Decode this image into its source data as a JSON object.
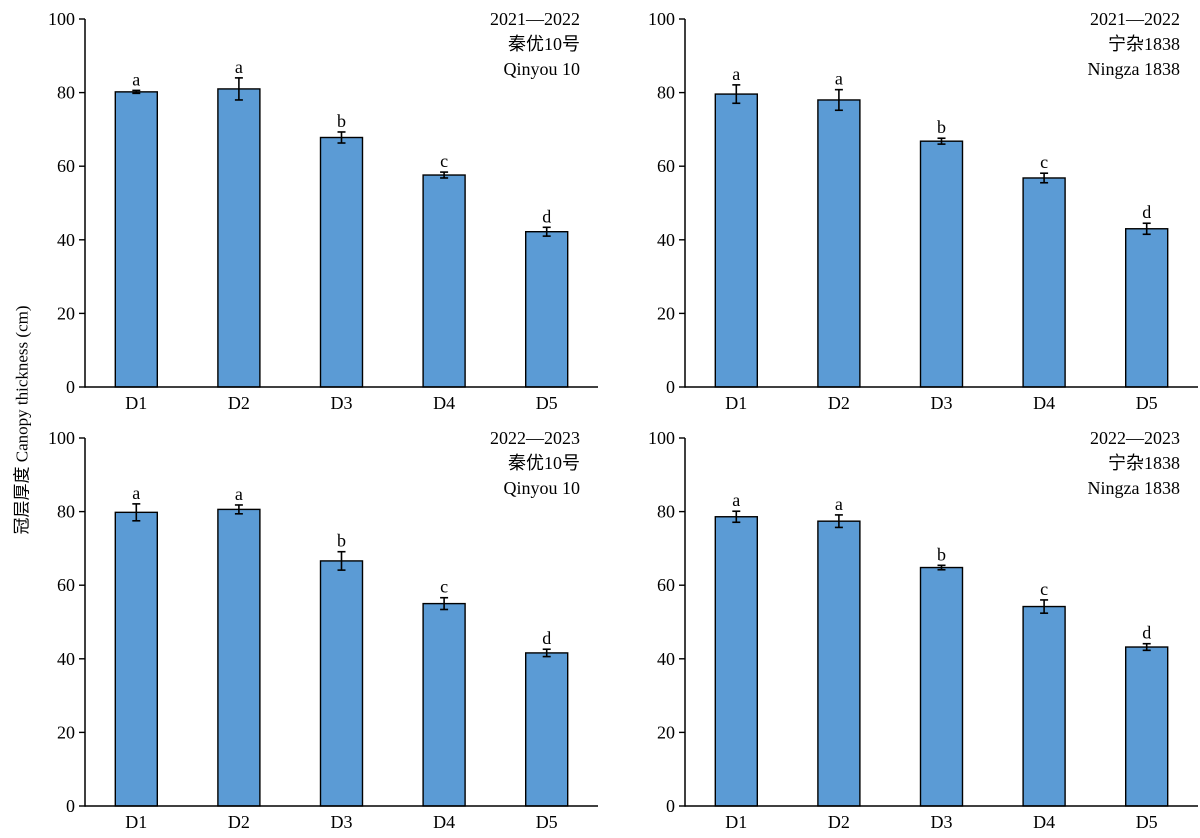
{
  "figure": {
    "ylabel": "冠层厚度 Canopy thickness (cm)",
    "bar_color": "#5b9bd5"
  },
  "chart_data": [
    {
      "type": "bar",
      "title_lines": [
        "2021—2022",
        "秦优10号",
        "Qinyou 10"
      ],
      "categories": [
        "D1",
        "D2",
        "D3",
        "D4",
        "D5"
      ],
      "values": [
        80.2,
        81.0,
        67.8,
        57.6,
        42.2
      ],
      "errors": [
        0.4,
        3.0,
        1.5,
        0.8,
        1.2
      ],
      "letters": [
        "a",
        "a",
        "b",
        "c",
        "d"
      ],
      "ylim": [
        0,
        100
      ],
      "yticks": [
        0,
        20,
        40,
        60,
        80,
        100
      ],
      "grid": false
    },
    {
      "type": "bar",
      "title_lines": [
        "2021—2022",
        "宁杂1838",
        "Ningza 1838"
      ],
      "categories": [
        "D1",
        "D2",
        "D3",
        "D4",
        "D5"
      ],
      "values": [
        79.6,
        78.0,
        66.8,
        56.8,
        43.0
      ],
      "errors": [
        2.5,
        2.8,
        0.8,
        1.3,
        1.5
      ],
      "letters": [
        "a",
        "a",
        "b",
        "c",
        "d"
      ],
      "ylim": [
        0,
        100
      ],
      "yticks": [
        0,
        20,
        40,
        60,
        80,
        100
      ],
      "grid": false
    },
    {
      "type": "bar",
      "title_lines": [
        "2022—2023",
        "秦优10号",
        "Qinyou 10"
      ],
      "categories": [
        "D1",
        "D2",
        "D3",
        "D4",
        "D5"
      ],
      "values": [
        79.8,
        80.6,
        66.6,
        55.0,
        41.6
      ],
      "errors": [
        2.3,
        1.2,
        2.5,
        1.6,
        1.0
      ],
      "letters": [
        "a",
        "a",
        "b",
        "c",
        "d"
      ],
      "ylim": [
        0,
        100
      ],
      "yticks": [
        0,
        20,
        40,
        60,
        80,
        100
      ],
      "grid": false
    },
    {
      "type": "bar",
      "title_lines": [
        "2022—2023",
        "宁杂1838",
        "Ningza 1838"
      ],
      "categories": [
        "D1",
        "D2",
        "D3",
        "D4",
        "D5"
      ],
      "values": [
        78.6,
        77.4,
        64.8,
        54.2,
        43.2
      ],
      "errors": [
        1.5,
        1.7,
        0.6,
        1.8,
        0.9
      ],
      "letters": [
        "a",
        "a",
        "b",
        "c",
        "d"
      ],
      "ylim": [
        0,
        100
      ],
      "yticks": [
        0,
        20,
        40,
        60,
        80,
        100
      ],
      "grid": false
    }
  ]
}
